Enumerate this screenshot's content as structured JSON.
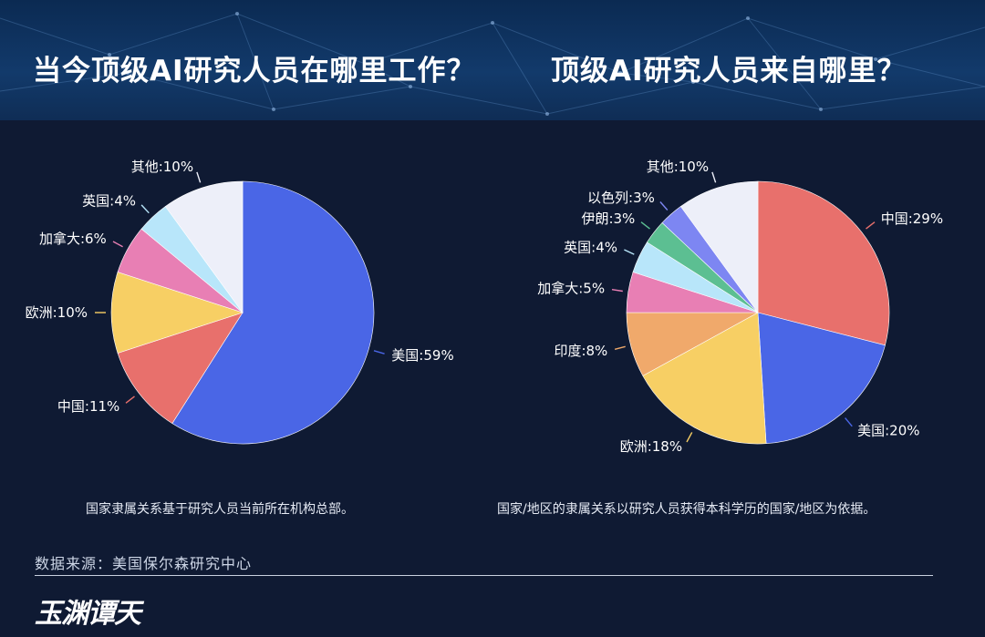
{
  "header": {
    "title_left": "当今顶级AI研究人员在哪里工作？",
    "title_right": "顶级AI研究人员来自哪里？"
  },
  "chart_data": [
    {
      "type": "pie",
      "title": "当今顶级AI研究人员在哪里工作？",
      "note": "国家隶属关系基于研究人员当前所在机构总部。",
      "slices": [
        {
          "label": "美国:59%",
          "value": 59,
          "color": "#4a66e6"
        },
        {
          "label": "中国:11%",
          "value": 11,
          "color": "#e8706c"
        },
        {
          "label": "欧洲:10%",
          "value": 10,
          "color": "#f7cf64"
        },
        {
          "label": "加拿大:6%",
          "value": 6,
          "color": "#e87fb4"
        },
        {
          "label": "英国:4%",
          "value": 4,
          "color": "#b8e6fa"
        },
        {
          "label": "其他:10%",
          "value": 10,
          "color": "#edeff9"
        }
      ]
    },
    {
      "type": "pie",
      "title": "顶级AI研究人员来自哪里？",
      "note": "国家/地区的隶属关系以研究人员获得本科学历的国家/地区为依据。",
      "slices": [
        {
          "label": "中国:29%",
          "value": 29,
          "color": "#e8706c"
        },
        {
          "label": "美国:20%",
          "value": 20,
          "color": "#4a66e6"
        },
        {
          "label": "欧洲:18%",
          "value": 18,
          "color": "#f7cf64"
        },
        {
          "label": "印度:8%",
          "value": 8,
          "color": "#f0a96b"
        },
        {
          "label": "加拿大:5%",
          "value": 5,
          "color": "#e87fb4"
        },
        {
          "label": "英国:4%",
          "value": 4,
          "color": "#b8e6fa"
        },
        {
          "label": "伊朗:3%",
          "value": 3,
          "color": "#5cbf92"
        },
        {
          "label": "以色列:3%",
          "value": 3,
          "color": "#7d86f2"
        },
        {
          "label": "其他:10%",
          "value": 10,
          "color": "#edeff9"
        }
      ]
    }
  ],
  "footer": {
    "source": "数据来源：美国保尔森研究中心",
    "logo": "玉渊谭天"
  }
}
